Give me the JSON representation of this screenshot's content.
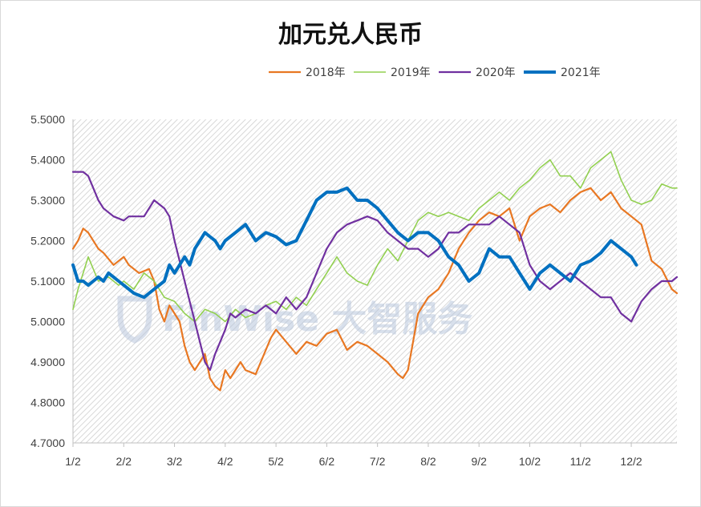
{
  "chart_data": {
    "type": "line",
    "title": "加元兑人民币",
    "ylim": [
      4.7,
      5.5
    ],
    "y_ticks": [
      "4.7000",
      "4.8000",
      "4.9000",
      "5.0000",
      "5.1000",
      "5.2000",
      "5.3000",
      "5.4000",
      "5.5000"
    ],
    "x_ticks": [
      "1/2",
      "2/2",
      "3/2",
      "4/2",
      "5/2",
      "6/2",
      "7/2",
      "8/2",
      "9/2",
      "10/2",
      "11/2",
      "12/2"
    ],
    "xlim": [
      0,
      11.9
    ],
    "grid": false,
    "legend_position": "top",
    "background_pattern": "diagonal-hatch",
    "series": [
      {
        "name": "2018年",
        "color": "#e87722",
        "x": [
          0,
          0.1,
          0.2,
          0.3,
          0.5,
          0.6,
          0.8,
          1.0,
          1.1,
          1.3,
          1.5,
          1.6,
          1.7,
          1.8,
          1.9,
          2.0,
          2.1,
          2.2,
          2.3,
          2.4,
          2.6,
          2.7,
          2.8,
          2.9,
          3.0,
          3.1,
          3.3,
          3.4,
          3.6,
          3.7,
          3.9,
          4.0,
          4.2,
          4.4,
          4.6,
          4.8,
          5.0,
          5.2,
          5.4,
          5.6,
          5.8,
          6.0,
          6.2,
          6.4,
          6.5,
          6.6,
          6.7,
          6.8,
          7.0,
          7.2,
          7.4,
          7.6,
          7.8,
          8.0,
          8.2,
          8.4,
          8.6,
          8.8,
          9.0,
          9.2,
          9.4,
          9.6,
          9.8,
          10.0,
          10.2,
          10.4,
          10.6,
          10.8,
          11.0,
          11.2,
          11.4,
          11.6,
          11.8,
          11.9
        ],
        "values": [
          5.18,
          5.2,
          5.23,
          5.22,
          5.18,
          5.17,
          5.14,
          5.16,
          5.14,
          5.12,
          5.13,
          5.1,
          5.03,
          5.0,
          5.04,
          5.02,
          5.0,
          4.94,
          4.9,
          4.88,
          4.92,
          4.86,
          4.84,
          4.83,
          4.88,
          4.86,
          4.9,
          4.88,
          4.87,
          4.9,
          4.96,
          4.98,
          4.95,
          4.92,
          4.95,
          4.94,
          4.97,
          4.98,
          4.93,
          4.95,
          4.94,
          4.92,
          4.9,
          4.87,
          4.86,
          4.88,
          4.95,
          5.02,
          5.06,
          5.08,
          5.12,
          5.18,
          5.22,
          5.25,
          5.27,
          5.26,
          5.28,
          5.2,
          5.26,
          5.28,
          5.29,
          5.27,
          5.3,
          5.32,
          5.33,
          5.3,
          5.32,
          5.28,
          5.26,
          5.24,
          5.15,
          5.13,
          5.08,
          5.07
        ]
      },
      {
        "name": "2019年",
        "color": "#92d050",
        "x": [
          0,
          0.1,
          0.2,
          0.3,
          0.5,
          0.7,
          0.9,
          1.0,
          1.2,
          1.4,
          1.6,
          1.8,
          2.0,
          2.2,
          2.4,
          2.6,
          2.8,
          3.0,
          3.2,
          3.4,
          3.6,
          3.8,
          4.0,
          4.2,
          4.4,
          4.6,
          4.8,
          5.0,
          5.2,
          5.4,
          5.6,
          5.8,
          6.0,
          6.2,
          6.4,
          6.6,
          6.8,
          7.0,
          7.2,
          7.4,
          7.6,
          7.8,
          8.0,
          8.2,
          8.4,
          8.6,
          8.8,
          9.0,
          9.2,
          9.4,
          9.6,
          9.8,
          10.0,
          10.2,
          10.4,
          10.6,
          10.8,
          11.0,
          11.2,
          11.4,
          11.6,
          11.8,
          11.9
        ],
        "values": [
          5.03,
          5.08,
          5.12,
          5.16,
          5.1,
          5.11,
          5.09,
          5.1,
          5.08,
          5.12,
          5.1,
          5.06,
          5.05,
          5.02,
          5.0,
          5.03,
          5.02,
          5.0,
          5.03,
          5.01,
          5.02,
          5.04,
          5.05,
          5.03,
          5.06,
          5.04,
          5.08,
          5.12,
          5.16,
          5.12,
          5.1,
          5.09,
          5.14,
          5.18,
          5.15,
          5.2,
          5.25,
          5.27,
          5.26,
          5.27,
          5.26,
          5.25,
          5.28,
          5.3,
          5.32,
          5.3,
          5.33,
          5.35,
          5.38,
          5.4,
          5.36,
          5.36,
          5.33,
          5.38,
          5.4,
          5.42,
          5.35,
          5.3,
          5.29,
          5.3,
          5.34,
          5.33,
          5.33
        ]
      },
      {
        "name": "2020年",
        "color": "#7030a0",
        "x": [
          0,
          0.1,
          0.2,
          0.3,
          0.4,
          0.5,
          0.6,
          0.7,
          0.8,
          1.0,
          1.1,
          1.2,
          1.4,
          1.6,
          1.8,
          1.9,
          2.0,
          2.1,
          2.2,
          2.3,
          2.4,
          2.5,
          2.6,
          2.7,
          2.8,
          2.9,
          3.0,
          3.1,
          3.2,
          3.4,
          3.6,
          3.8,
          4.0,
          4.2,
          4.4,
          4.6,
          4.8,
          5.0,
          5.2,
          5.4,
          5.6,
          5.8,
          6.0,
          6.2,
          6.4,
          6.6,
          6.8,
          7.0,
          7.2,
          7.4,
          7.6,
          7.8,
          8.0,
          8.2,
          8.4,
          8.6,
          8.8,
          9.0,
          9.2,
          9.4,
          9.6,
          9.8,
          10.0,
          10.2,
          10.4,
          10.6,
          10.8,
          11.0,
          11.2,
          11.4,
          11.6,
          11.8,
          11.9
        ],
        "values": [
          5.37,
          5.37,
          5.37,
          5.36,
          5.33,
          5.3,
          5.28,
          5.27,
          5.26,
          5.25,
          5.26,
          5.26,
          5.26,
          5.3,
          5.28,
          5.26,
          5.2,
          5.15,
          5.1,
          5.05,
          5.0,
          4.95,
          4.9,
          4.88,
          4.92,
          4.95,
          4.98,
          5.02,
          5.01,
          5.03,
          5.02,
          5.04,
          5.02,
          5.06,
          5.03,
          5.06,
          5.12,
          5.18,
          5.22,
          5.24,
          5.25,
          5.26,
          5.25,
          5.22,
          5.2,
          5.18,
          5.18,
          5.16,
          5.18,
          5.22,
          5.22,
          5.24,
          5.24,
          5.24,
          5.26,
          5.24,
          5.22,
          5.14,
          5.1,
          5.08,
          5.1,
          5.12,
          5.1,
          5.08,
          5.06,
          5.06,
          5.02,
          5.0,
          5.05,
          5.08,
          5.1,
          5.1,
          5.11
        ]
      },
      {
        "name": "2021年",
        "color": "#0070c0",
        "x": [
          0,
          0.1,
          0.2,
          0.3,
          0.4,
          0.5,
          0.6,
          0.7,
          0.8,
          0.9,
          1.0,
          1.2,
          1.4,
          1.6,
          1.8,
          1.9,
          2.0,
          2.1,
          2.2,
          2.3,
          2.4,
          2.5,
          2.6,
          2.7,
          2.8,
          2.9,
          3.0,
          3.2,
          3.4,
          3.6,
          3.8,
          4.0,
          4.2,
          4.4,
          4.6,
          4.8,
          5.0,
          5.2,
          5.4,
          5.6,
          5.8,
          6.0,
          6.2,
          6.4,
          6.6,
          6.8,
          7.0,
          7.2,
          7.4,
          7.6,
          7.8,
          8.0,
          8.2,
          8.4,
          8.6,
          8.8,
          9.0,
          9.2,
          9.4,
          9.6,
          9.8,
          10.0,
          10.2,
          10.4,
          10.6,
          10.8,
          11.0,
          11.1
        ],
        "values": [
          5.14,
          5.1,
          5.1,
          5.09,
          5.1,
          5.11,
          5.1,
          5.12,
          5.11,
          5.1,
          5.09,
          5.07,
          5.06,
          5.08,
          5.1,
          5.14,
          5.12,
          5.14,
          5.16,
          5.14,
          5.18,
          5.2,
          5.22,
          5.21,
          5.2,
          5.18,
          5.2,
          5.22,
          5.24,
          5.2,
          5.22,
          5.21,
          5.19,
          5.2,
          5.25,
          5.3,
          5.32,
          5.32,
          5.33,
          5.3,
          5.3,
          5.28,
          5.25,
          5.22,
          5.2,
          5.22,
          5.22,
          5.2,
          5.16,
          5.14,
          5.1,
          5.12,
          5.18,
          5.16,
          5.16,
          5.12,
          5.08,
          5.12,
          5.14,
          5.12,
          5.1,
          5.14,
          5.15,
          5.17,
          5.2,
          5.18,
          5.16,
          5.14
        ]
      }
    ]
  },
  "watermark": {
    "text": "FinWise 大智服务",
    "icon": "shield-logo-icon"
  }
}
